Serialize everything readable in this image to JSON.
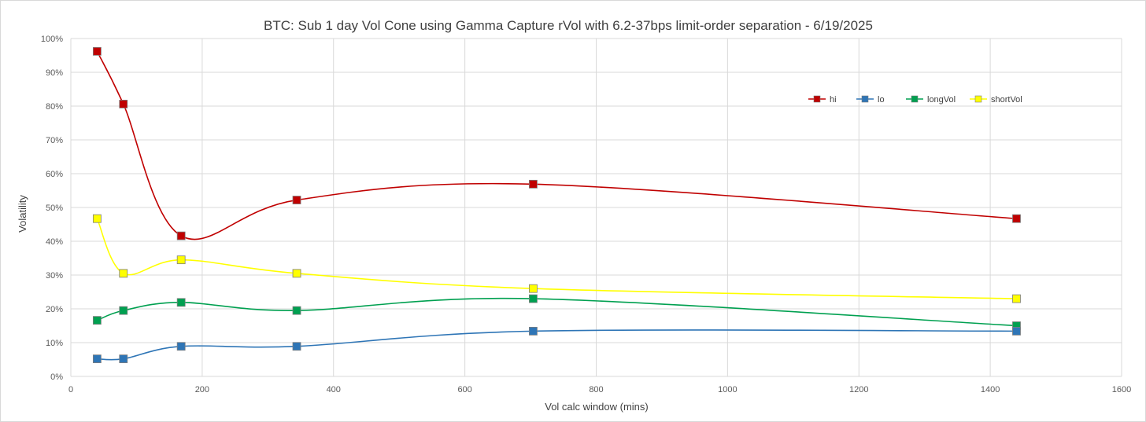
{
  "chart_data": {
    "type": "line",
    "title": "BTC: Sub 1 day Vol Cone using Gamma Capture rVol with 6.2-37bps limit-order separation - 6/19/2025",
    "xlabel": "Vol calc window (mins)",
    "ylabel": "Volatility",
    "xlim": [
      0,
      1600
    ],
    "ylim": [
      0,
      1.0
    ],
    "x_ticks": [
      "0",
      "200",
      "400",
      "600",
      "800",
      "1000",
      "1200",
      "1400",
      "1600"
    ],
    "y_ticks": [
      "0%",
      "10%",
      "20%",
      "30%",
      "40%",
      "50%",
      "60%",
      "70%",
      "80%",
      "90%",
      "100%"
    ],
    "grid": true,
    "smooth": true,
    "legend_position": "top-right",
    "x": [
      40,
      80,
      168,
      344,
      704,
      1440
    ],
    "series": [
      {
        "name": "hi",
        "color": "#c00000",
        "values": [
          0.962,
          0.806,
          0.416,
          0.522,
          0.569,
          0.467
        ]
      },
      {
        "name": "lo",
        "color": "#2e75b6",
        "values": [
          0.052,
          0.052,
          0.089,
          0.089,
          0.134,
          0.134
        ]
      },
      {
        "name": "longVol",
        "color": "#00a050",
        "values": [
          0.166,
          0.195,
          0.219,
          0.195,
          0.23,
          0.15
        ]
      },
      {
        "name": "shortVol",
        "color": "#ffff00",
        "values": [
          0.467,
          0.305,
          0.345,
          0.305,
          0.26,
          0.23
        ]
      }
    ]
  }
}
